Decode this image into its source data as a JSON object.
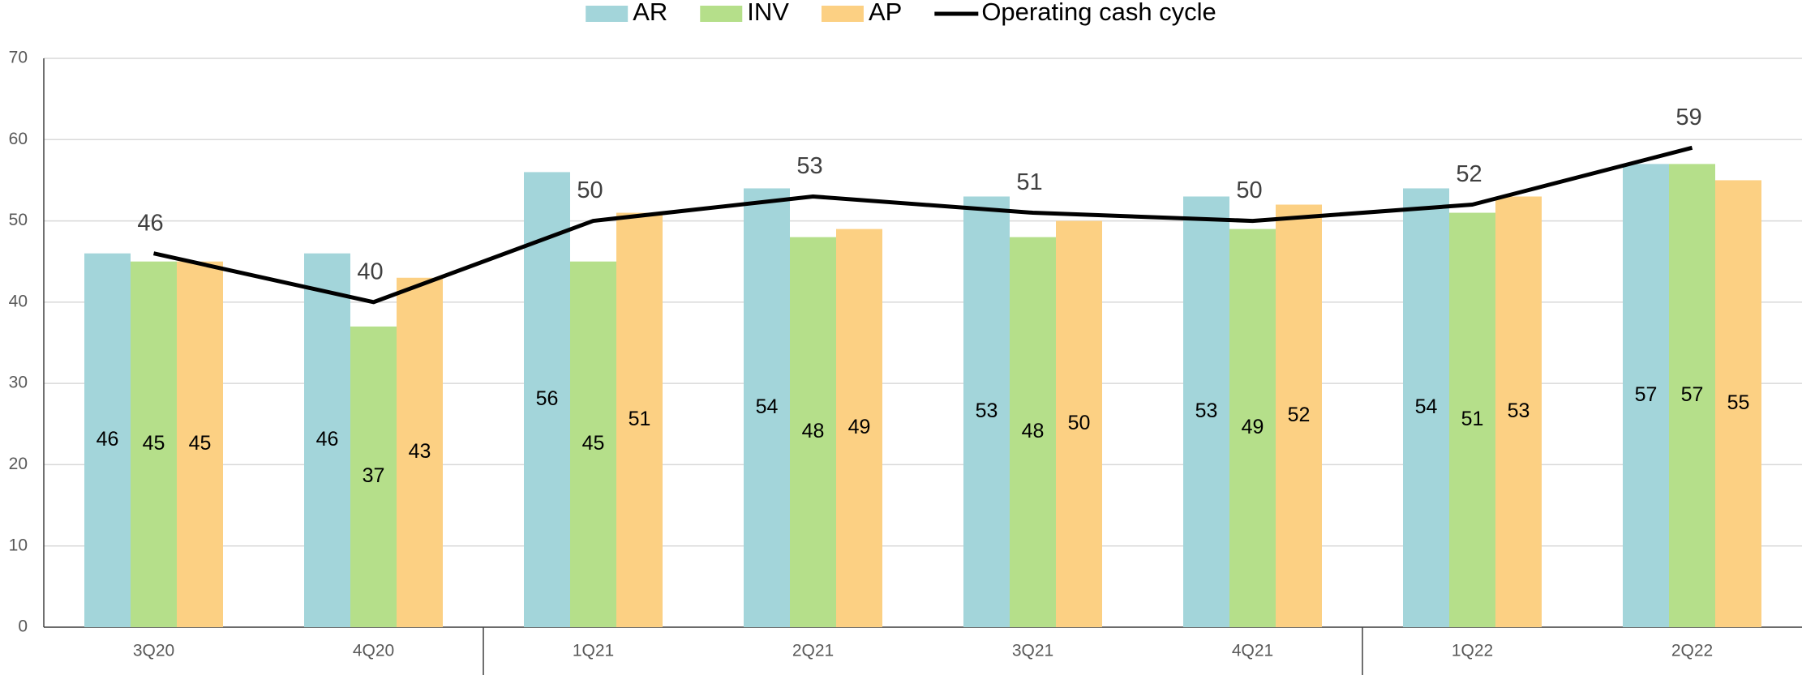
{
  "chart_data": {
    "type": "bar",
    "categories": [
      "3Q20",
      "4Q20",
      "1Q21",
      "2Q21",
      "3Q21",
      "4Q21",
      "1Q22",
      "2Q22"
    ],
    "series": [
      {
        "name": "AR",
        "type": "bar",
        "color": "#a3d5da",
        "values": [
          46,
          46,
          56,
          54,
          53,
          53,
          54,
          57
        ]
      },
      {
        "name": "INV",
        "type": "bar",
        "color": "#b5df8a",
        "values": [
          45,
          37,
          45,
          48,
          48,
          49,
          51,
          57
        ]
      },
      {
        "name": "AP",
        "type": "bar",
        "color": "#fcd083",
        "values": [
          45,
          43,
          51,
          49,
          50,
          52,
          53,
          55
        ]
      },
      {
        "name": "Operating cash cycle",
        "type": "line",
        "color": "#000000",
        "values": [
          46,
          40,
          50,
          53,
          51,
          50,
          52,
          59
        ]
      }
    ],
    "ylim": [
      0,
      70
    ],
    "yticks": [
      0,
      10,
      20,
      30,
      40,
      50,
      60,
      70
    ],
    "grid": true,
    "legend": "top"
  }
}
